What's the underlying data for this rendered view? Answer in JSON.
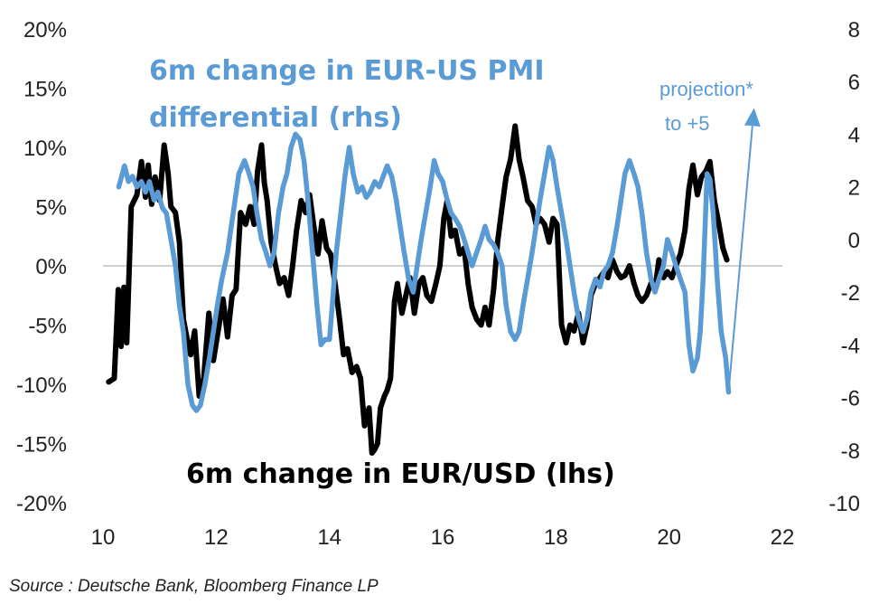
{
  "chart_data": {
    "type": "line",
    "title": "",
    "source": "Source : Deutsche Bank, Bloomberg Finance LP",
    "x_ticks": [
      "10",
      "12",
      "14",
      "16",
      "18",
      "20",
      "22"
    ],
    "x_tick_values": [
      10,
      12,
      14,
      16,
      18,
      20,
      22
    ],
    "xlim": [
      10,
      22
    ],
    "y_left": {
      "ticks": [
        "20%",
        "15%",
        "10%",
        "5%",
        "0%",
        "-5%",
        "-10%",
        "-15%",
        "-20%"
      ],
      "tick_values": [
        20,
        15,
        10,
        5,
        0,
        -5,
        -10,
        -15,
        -20
      ],
      "lim": [
        -20,
        20
      ]
    },
    "y_right": {
      "ticks": [
        "8",
        "6",
        "4",
        "2",
        "0",
        "-2",
        "-4",
        "-6",
        "-8",
        "-10"
      ],
      "tick_values": [
        8,
        6,
        4,
        2,
        0,
        -2,
        -4,
        -6,
        -8,
        -10
      ],
      "lim": [
        -10,
        8
      ]
    },
    "annotations": {
      "pmi_label_line1": "6m change in EUR-US PMI",
      "pmi_label_line2": "differential (rhs)",
      "eurusd_label": "6m change in EUR/USD (lhs)",
      "projection_line1": "projection*",
      "projection_line2": "to +5"
    },
    "series": [
      {
        "name": "6m change in EUR/USD (lhs)",
        "axis": "left",
        "color": "#000000",
        "x": [
          10.1,
          10.2,
          10.27,
          10.32,
          10.37,
          10.42,
          10.5,
          10.6,
          10.68,
          10.75,
          10.8,
          10.86,
          10.92,
          11.0,
          11.08,
          11.15,
          11.2,
          11.28,
          11.35,
          11.42,
          11.48,
          11.55,
          11.62,
          11.7,
          11.78,
          11.87,
          11.95,
          12.05,
          12.12,
          12.2,
          12.28,
          12.35,
          12.43,
          12.52,
          12.6,
          12.67,
          12.73,
          12.8,
          12.85,
          12.9,
          12.97,
          13.05,
          13.12,
          13.2,
          13.28,
          13.35,
          13.42,
          13.5,
          13.58,
          13.65,
          13.72,
          13.8,
          13.87,
          13.95,
          14.02,
          14.1,
          14.18,
          14.25,
          14.32,
          14.4,
          14.48,
          14.55,
          14.62,
          14.7,
          14.75,
          14.8,
          14.85,
          14.9,
          14.97,
          15.02,
          15.08,
          15.15,
          15.2,
          15.28,
          15.35,
          15.42,
          15.5,
          15.58,
          15.65,
          15.72,
          15.8,
          15.88,
          15.95,
          16.02,
          16.08,
          16.15,
          16.22,
          16.3,
          16.38,
          16.45,
          16.52,
          16.6,
          16.68,
          16.75,
          16.82,
          16.9,
          16.97,
          17.05,
          17.12,
          17.2,
          17.28,
          17.35,
          17.42,
          17.5,
          17.58,
          17.65,
          17.72,
          17.8,
          17.88,
          17.95,
          18.02,
          18.1,
          18.18,
          18.25,
          18.32,
          18.4,
          18.48,
          18.55,
          18.62,
          18.7,
          18.78,
          18.85,
          18.92,
          19.0,
          19.08,
          19.15,
          19.22,
          19.3,
          19.38,
          19.45,
          19.52,
          19.6,
          19.68,
          19.75,
          19.82,
          19.9,
          19.97,
          20.05,
          20.12,
          20.2,
          20.28,
          20.35,
          20.42,
          20.5,
          20.57,
          20.65,
          20.72,
          20.8,
          20.88,
          20.95,
          21.02
        ],
        "values": [
          -9.8,
          -9.5,
          -2.0,
          -6.8,
          -1.8,
          -6.5,
          5.0,
          6.0,
          8.8,
          5.8,
          8.5,
          5.2,
          7.5,
          5.5,
          10.2,
          7.8,
          5.0,
          4.5,
          2.0,
          -4.5,
          -6.0,
          -7.5,
          -5.5,
          -11.0,
          -9.5,
          -4.0,
          -8.0,
          -5.0,
          -2.8,
          -6.0,
          -2.5,
          -2.0,
          4.5,
          3.5,
          5.0,
          3.5,
          8.0,
          10.2,
          7.0,
          5.5,
          2.0,
          0.0,
          -1.5,
          -1.0,
          -2.5,
          0.0,
          3.0,
          5.5,
          4.5,
          6.0,
          3.5,
          1.0,
          3.8,
          1.5,
          1.0,
          -1.5,
          -4.5,
          -7.5,
          -7.0,
          -9.0,
          -8.5,
          -9.5,
          -13.5,
          -12.0,
          -15.8,
          -15.5,
          -15.0,
          -12.0,
          -11.0,
          -10.5,
          -9.5,
          -3.0,
          -1.5,
          -4.0,
          -2.5,
          -1.0,
          -4.0,
          -1.5,
          -1.0,
          -2.5,
          -3.0,
          -1.5,
          0.0,
          4.0,
          5.5,
          2.5,
          3.0,
          1.0,
          1.5,
          -1.5,
          -3.5,
          -4.5,
          -5.0,
          -3.5,
          -5.0,
          -2.0,
          2.0,
          5.0,
          7.5,
          9.0,
          11.8,
          9.0,
          7.5,
          5.5,
          5.0,
          3.5,
          4.0,
          3.5,
          2.0,
          4.0,
          3.5,
          -5.0,
          -6.5,
          -5.0,
          -5.5,
          -4.0,
          -6.5,
          -5.0,
          -2.5,
          -1.5,
          -1.0,
          -0.5,
          -1.0,
          0.5,
          -0.5,
          -1.0,
          -0.8,
          0.0,
          -1.5,
          -2.5,
          -3.0,
          -2.5,
          -1.5,
          -2.0,
          0.5,
          -1.0,
          -0.5,
          -1.0,
          0.0,
          1.0,
          3.0,
          6.5,
          8.5,
          6.0,
          7.5,
          8.0,
          8.8,
          5.5,
          3.5,
          1.5,
          0.5
        ]
      },
      {
        "name": "6m change in EUR-US PMI differential (rhs)",
        "axis": "right",
        "color": "#5b9bd5",
        "x": [
          10.28,
          10.38,
          10.45,
          10.52,
          10.6,
          10.68,
          10.75,
          10.82,
          10.9,
          10.97,
          11.05,
          11.12,
          11.2,
          11.28,
          11.35,
          11.42,
          11.5,
          11.58,
          11.65,
          11.72,
          11.8,
          11.88,
          11.95,
          12.02,
          12.1,
          12.2,
          12.3,
          12.4,
          12.5,
          12.58,
          12.65,
          12.72,
          12.8,
          12.88,
          12.95,
          13.02,
          13.1,
          13.18,
          13.25,
          13.32,
          13.4,
          13.48,
          13.55,
          13.62,
          13.7,
          13.78,
          13.85,
          13.92,
          14.0,
          14.05,
          14.12,
          14.2,
          14.28,
          14.35,
          14.42,
          14.5,
          14.58,
          14.65,
          14.72,
          14.8,
          14.88,
          14.95,
          15.02,
          15.1,
          15.18,
          15.25,
          15.32,
          15.4,
          15.48,
          15.55,
          15.62,
          15.7,
          15.78,
          15.85,
          15.92,
          16.0,
          16.08,
          16.15,
          16.22,
          16.3,
          16.38,
          16.45,
          16.52,
          16.6,
          16.68,
          16.75,
          16.82,
          16.9,
          16.97,
          17.05,
          17.12,
          17.2,
          17.28,
          17.35,
          17.42,
          17.5,
          17.58,
          17.65,
          17.72,
          17.8,
          17.88,
          17.95,
          18.02,
          18.1,
          18.18,
          18.25,
          18.32,
          18.4,
          18.48,
          18.55,
          18.62,
          18.7,
          18.78,
          18.85,
          18.92,
          19.0,
          19.08,
          19.15,
          19.22,
          19.3,
          19.38,
          19.45,
          19.52,
          19.6,
          19.68,
          19.75,
          19.82,
          19.9,
          19.97,
          20.05,
          20.12,
          20.2,
          20.28,
          20.35,
          20.42,
          20.5,
          20.55,
          20.6,
          20.67,
          20.72,
          20.78,
          20.85,
          20.92,
          21.0,
          21.05
        ],
        "values": [
          2.0,
          2.8,
          2.2,
          2.4,
          2.0,
          2.2,
          1.8,
          2.2,
          1.5,
          1.8,
          1.2,
          1.0,
          0.0,
          -1.0,
          -2.5,
          -3.5,
          -5.5,
          -6.3,
          -6.5,
          -6.3,
          -5.5,
          -4.5,
          -3.5,
          -2.5,
          -1.5,
          -0.5,
          1.0,
          2.5,
          3.0,
          2.5,
          2.0,
          1.0,
          0.0,
          -0.5,
          -1.0,
          -0.5,
          1.0,
          2.0,
          2.5,
          3.5,
          4.0,
          3.8,
          3.0,
          1.5,
          -0.5,
          -2.5,
          -4.0,
          -3.8,
          -3.8,
          -2.5,
          -0.5,
          1.0,
          2.5,
          3.5,
          2.5,
          1.8,
          2.0,
          1.6,
          1.8,
          2.2,
          2.0,
          2.4,
          2.8,
          2.4,
          1.5,
          0.5,
          -0.5,
          -1.5,
          -2.0,
          -1.0,
          0.0,
          1.0,
          2.0,
          3.0,
          2.5,
          2.2,
          1.5,
          1.0,
          0.8,
          0.5,
          0.0,
          -0.5,
          -1.0,
          -0.5,
          0.0,
          0.5,
          0.0,
          -0.2,
          -0.5,
          -1.0,
          -2.5,
          -3.5,
          -3.8,
          -3.5,
          -2.5,
          -1.5,
          -0.5,
          0.5,
          1.5,
          2.5,
          3.5,
          3.0,
          2.0,
          1.0,
          0.0,
          -1.0,
          -2.0,
          -3.0,
          -3.5,
          -3.0,
          -2.0,
          -1.5,
          -1.8,
          -1.2,
          -1.0,
          -0.5,
          0.5,
          1.5,
          2.5,
          3.0,
          2.5,
          2.0,
          1.0,
          -0.5,
          -1.5,
          -2.0,
          -1.5,
          -1.0,
          0.0,
          -0.5,
          -1.0,
          -1.5,
          -2.0,
          -4.0,
          -5.0,
          -4.5,
          -3.5,
          -1.5,
          2.5,
          2.3,
          1.0,
          -1.5,
          -3.5,
          -4.5,
          -5.8
        ],
        "projection": {
          "from": [
            21.05,
            -5.8
          ],
          "to": [
            21.5,
            5.0
          ]
        }
      }
    ]
  }
}
